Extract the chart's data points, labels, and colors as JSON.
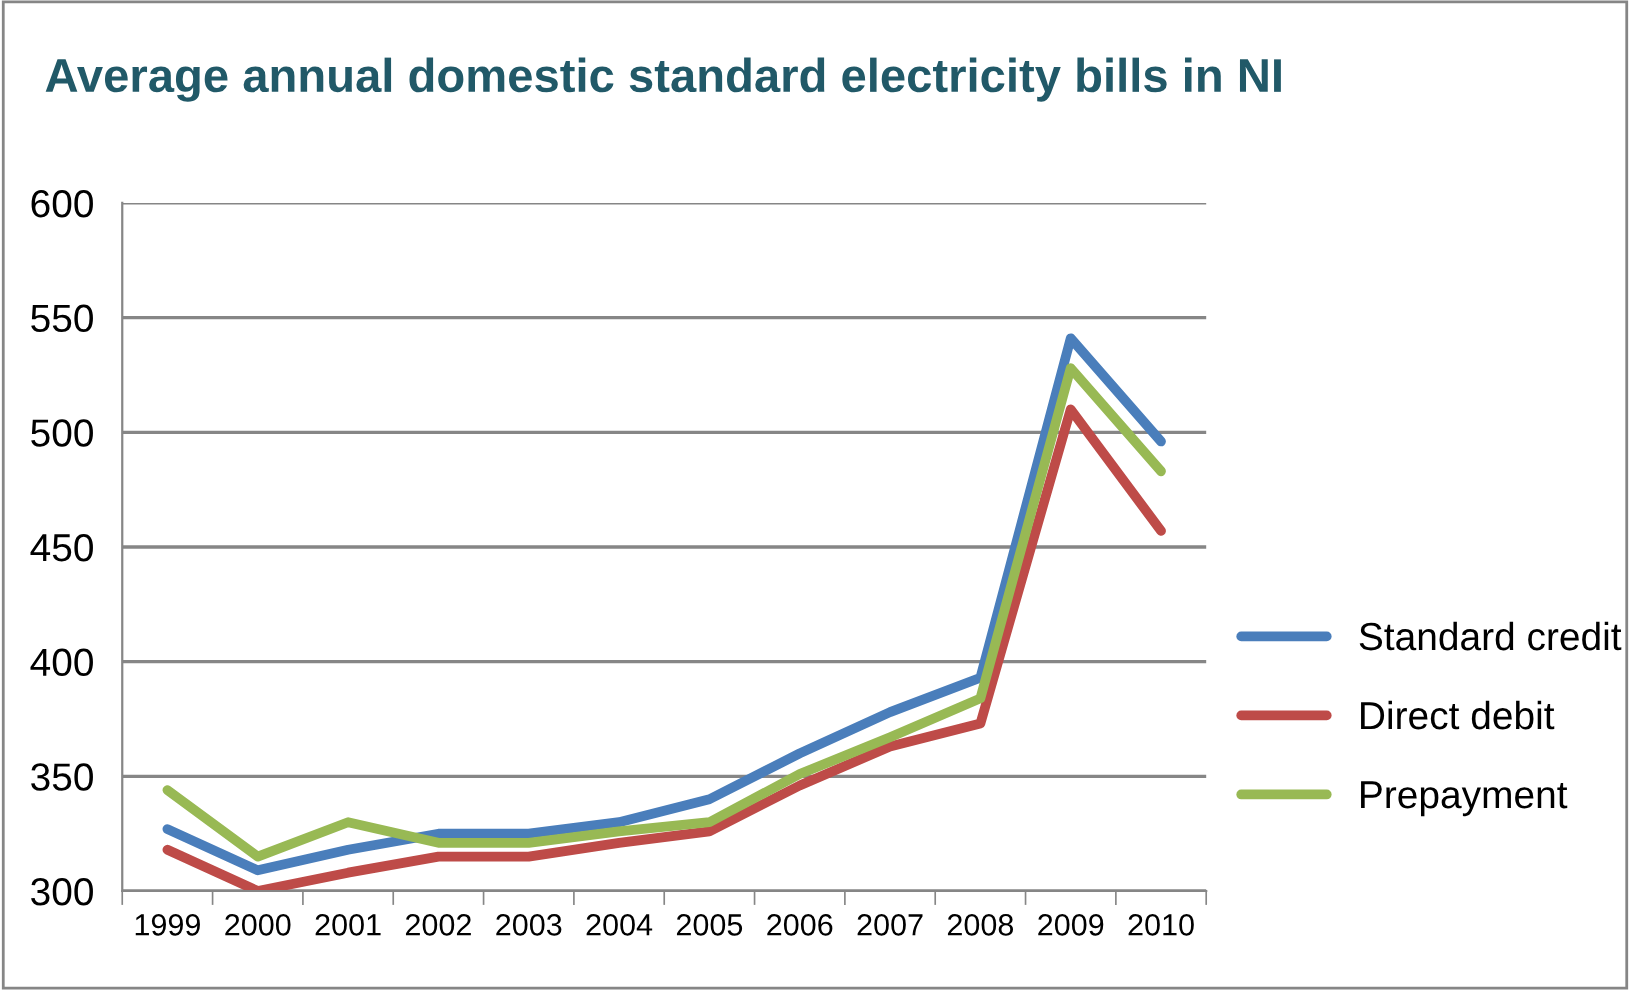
{
  "chart_data": {
    "type": "line",
    "title": "Average annual domestic standard electricity bills in NI",
    "categories": [
      "1999",
      "2000",
      "2001",
      "2002",
      "2003",
      "2004",
      "2005",
      "2006",
      "2007",
      "2008",
      "2009",
      "2010"
    ],
    "series": [
      {
        "name": "Standard credit",
        "color": "#4a7ebb",
        "values": [
          327,
          309,
          318,
          325,
          325,
          330,
          340,
          360,
          378,
          393,
          541,
          496
        ]
      },
      {
        "name": "Direct debit",
        "color": "#be4b48",
        "values": [
          318,
          300,
          308,
          315,
          315,
          321,
          326,
          346,
          363,
          373,
          510,
          457
        ]
      },
      {
        "name": "Prepayment",
        "color": "#98b954",
        "values": [
          344,
          315,
          330,
          321,
          321,
          326,
          330,
          351,
          367,
          384,
          528,
          483
        ]
      }
    ],
    "ylim": [
      300,
      600
    ],
    "yticks": [
      300,
      350,
      400,
      450,
      500,
      550,
      600
    ],
    "grid": "y",
    "legend": "right",
    "marker": "none",
    "line_style": "solid"
  }
}
